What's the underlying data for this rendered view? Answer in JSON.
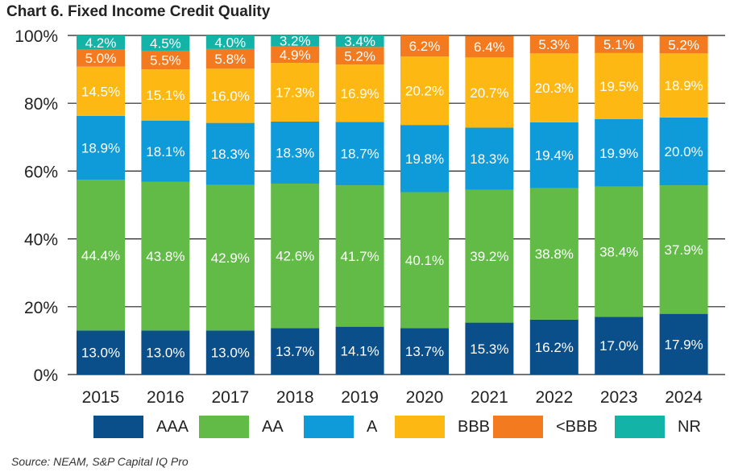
{
  "chart_data": {
    "type": "bar",
    "stacked": true,
    "title": "Chart 6. Fixed Income Credit Quality",
    "xlabel": "",
    "ylabel": "",
    "ylim": [
      0,
      100
    ],
    "yticks": [
      "0%",
      "20%",
      "40%",
      "60%",
      "80%",
      "100%"
    ],
    "grid": true,
    "legend_position": "bottom",
    "categories": [
      "2015",
      "2016",
      "2017",
      "2018",
      "2019",
      "2020",
      "2021",
      "2022",
      "2023",
      "2024"
    ],
    "series": [
      {
        "name": "AAA",
        "color": "#0b4f8a",
        "values": [
          13.0,
          13.0,
          13.0,
          13.7,
          14.1,
          13.7,
          15.3,
          16.2,
          17.0,
          17.9
        ],
        "labels": [
          "13.0%",
          "13.0%",
          "13.0%",
          "13.7%",
          "14.1%",
          "13.7%",
          "15.3%",
          "16.2%",
          "17.0%",
          "17.9%"
        ]
      },
      {
        "name": "AA",
        "color": "#62bb46",
        "values": [
          44.4,
          43.8,
          42.9,
          42.6,
          41.7,
          40.1,
          39.2,
          38.8,
          38.4,
          37.9
        ],
        "labels": [
          "44.4%",
          "43.8%",
          "42.9%",
          "42.6%",
          "41.7%",
          "40.1%",
          "39.2%",
          "38.8%",
          "38.4%",
          "37.9%"
        ]
      },
      {
        "name": "A",
        "color": "#0f9ad9",
        "values": [
          18.9,
          18.1,
          18.3,
          18.3,
          18.7,
          19.8,
          18.3,
          19.4,
          19.9,
          20.0
        ],
        "labels": [
          "18.9%",
          "18.1%",
          "18.3%",
          "18.3%",
          "18.7%",
          "19.8%",
          "18.3%",
          "19.4%",
          "19.9%",
          "20.0%"
        ]
      },
      {
        "name": "BBB",
        "color": "#fdb813",
        "values": [
          14.5,
          15.1,
          16.0,
          17.3,
          16.9,
          20.2,
          20.7,
          20.3,
          19.5,
          18.9
        ],
        "labels": [
          "14.5%",
          "15.1%",
          "16.0%",
          "17.3%",
          "16.9%",
          "20.2%",
          "20.7%",
          "20.3%",
          "19.5%",
          "18.9%"
        ]
      },
      {
        "name": "<BBB",
        "color": "#f47a20",
        "values": [
          5.0,
          5.5,
          5.8,
          4.9,
          5.2,
          6.2,
          6.4,
          5.3,
          5.1,
          5.2
        ],
        "labels": [
          "5.0%",
          "5.5%",
          "5.8%",
          "4.9%",
          "5.2%",
          "6.2%",
          "6.4%",
          "5.3%",
          "5.1%",
          "5.2%"
        ]
      },
      {
        "name": "NR",
        "color": "#14b3a8",
        "values": [
          4.2,
          4.5,
          4.0,
          3.2,
          3.4,
          0,
          0,
          0,
          0,
          0
        ],
        "labels": [
          "4.2%",
          "4.5%",
          "4.0%",
          "3.2%",
          "3.4%",
          "",
          "",
          "",
          "",
          ""
        ]
      }
    ]
  },
  "source_note": "Source: NEAM, S&P Capital IQ Pro"
}
